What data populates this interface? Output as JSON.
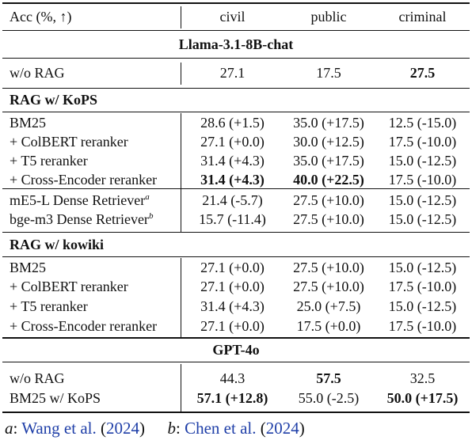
{
  "header": {
    "metric": "Acc (%, ↑)",
    "cols": [
      "civil",
      "public",
      "criminal"
    ]
  },
  "llama": {
    "title": "Llama-3.1-8B-chat",
    "worag": {
      "label": "w/o RAG",
      "vals": [
        "27.1",
        "17.5",
        "27.5"
      ]
    },
    "kops_title": "RAG w/ KoPS",
    "kops_rows": [
      {
        "label": "BM25",
        "vals": [
          "28.6 (+1.5)",
          "35.0 (+17.5)",
          "12.5 (-15.0)"
        ]
      },
      {
        "label": "+ ColBERT reranker",
        "vals": [
          "27.1 (+0.0)",
          "30.0 (+12.5)",
          "17.5 (-10.0)"
        ]
      },
      {
        "label": "+ T5 reranker",
        "vals": [
          "31.4 (+4.3)",
          "35.0 (+17.5)",
          "15.0 (-12.5)"
        ]
      },
      {
        "label": "+ Cross-Encoder reranker",
        "vals": [
          "31.4 (+4.3)",
          "40.0 (+22.5)",
          "17.5 (-10.0)"
        ]
      }
    ],
    "dense_rows": [
      {
        "label": "mE5-L Dense Retriever",
        "sup": "a",
        "vals": [
          "21.4 (-5.7)",
          "27.5 (+10.0)",
          "15.0 (-12.5)"
        ]
      },
      {
        "label": "bge-m3 Dense Retriever",
        "sup": "b",
        "vals": [
          "15.7 (-11.4)",
          "27.5 (+10.0)",
          "15.0 (-12.5)"
        ]
      }
    ],
    "kowiki_title": "RAG w/ kowiki",
    "kowiki_rows": [
      {
        "label": "BM25",
        "vals": [
          "27.1 (+0.0)",
          "27.5 (+10.0)",
          "15.0 (-12.5)"
        ]
      },
      {
        "label": "+ ColBERT reranker",
        "vals": [
          "27.1 (+0.0)",
          "27.5 (+10.0)",
          "17.5 (-10.0)"
        ]
      },
      {
        "label": "+ T5 reranker",
        "vals": [
          "31.4 (+4.3)",
          "25.0 (+7.5)",
          "15.0 (-12.5)"
        ]
      },
      {
        "label": "+ Cross-Encoder reranker",
        "vals": [
          "27.1 (+0.0)",
          "17.5 (+0.0)",
          "17.5 (-10.0)"
        ]
      }
    ]
  },
  "gpt": {
    "title": "GPT-4o",
    "rows": [
      {
        "label": "w/o RAG",
        "vals": [
          "44.3",
          "57.5",
          "32.5"
        ]
      },
      {
        "label": "BM25 w/ KoPS",
        "vals": [
          "57.1 (+12.8)",
          "55.0 (-2.5)",
          "50.0 (+17.5)"
        ]
      }
    ]
  },
  "footer": {
    "a_key": "a",
    "a_sep": ": ",
    "a_author": "Wang et al.",
    "a_year": "2024",
    "b_key": "b",
    "b_sep": ": ",
    "b_author": "Chen et al.",
    "b_year": "2024"
  }
}
